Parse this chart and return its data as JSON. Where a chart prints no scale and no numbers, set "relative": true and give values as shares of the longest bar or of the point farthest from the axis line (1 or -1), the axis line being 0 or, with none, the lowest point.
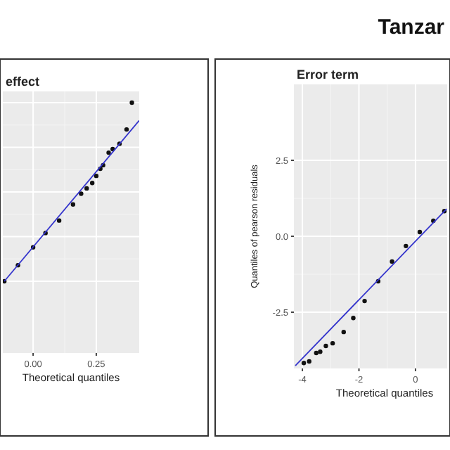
{
  "chart_data": [
    {
      "type": "scatter",
      "title": "effect",
      "xlabel": "Theoretical quantiles",
      "relative": true,
      "grid": true,
      "marker": "circle",
      "tick_labels": "x",
      "xlim": [
        -0.12,
        0.42
      ],
      "xticks": [
        {
          "value": 0,
          "label": "0.00"
        },
        {
          "value": 0.25,
          "label": "0.25"
        }
      ],
      "series": [
        {
          "color": "#111111",
          "x": [
            -0.114,
            -0.06,
            0,
            0.049,
            0.103,
            0.158,
            0.19,
            0.212,
            0.234,
            0.25,
            0.266,
            0.277,
            0.299,
            0.315,
            0.342,
            0.37,
            0.391
          ],
          "values": [
            0,
            0.09,
            0.19,
            0.27,
            0.34,
            0.43,
            0.49,
            0.52,
            0.55,
            0.59,
            0.63,
            0.65,
            0.72,
            0.74,
            0.77,
            0.85,
            1
          ]
        },
        {
          "type": "line",
          "color": "#3333cc",
          "marker": "none",
          "x": [
            -0.114,
            0.42
          ],
          "values": [
            0,
            0.9
          ]
        }
      ]
    },
    {
      "type": "scatter",
      "title": "Error term",
      "xlabel": "Theoretical quantiles",
      "ylabel": "Quantiles of pearson residuals",
      "annotations": [
        "Tanzar"
      ],
      "grid": true,
      "marker": "circle",
      "xlim": [
        -4.3,
        1.12
      ],
      "ylim": [
        -4.35,
        5
      ],
      "xticks": [
        -4,
        -2,
        0
      ],
      "yticks": [
        {
          "value": -2.5,
          "label": "-2.5"
        },
        {
          "value": 0,
          "label": "0.0"
        },
        {
          "value": 2.5,
          "label": "2.5"
        }
      ],
      "series": [
        {
          "color": "#111111",
          "x": [
            -3.95,
            -3.76,
            -3.51,
            -3.37,
            -3.17,
            -2.93,
            -2.54,
            -2.2,
            -1.8,
            -1.32,
            -0.83,
            -0.34,
            0.15,
            0.63,
            1.02
          ],
          "values": [
            -4.17,
            -4.12,
            -3.84,
            -3.8,
            -3.61,
            -3.52,
            -3.15,
            -2.69,
            -2.13,
            -1.48,
            -0.83,
            -0.32,
            0.14,
            0.51,
            0.83
          ]
        },
        {
          "type": "line",
          "color": "#3333cc",
          "marker": "none",
          "x": [
            -4.25,
            1.1
          ],
          "values": [
            -4.26,
            0.9
          ]
        }
      ]
    }
  ]
}
